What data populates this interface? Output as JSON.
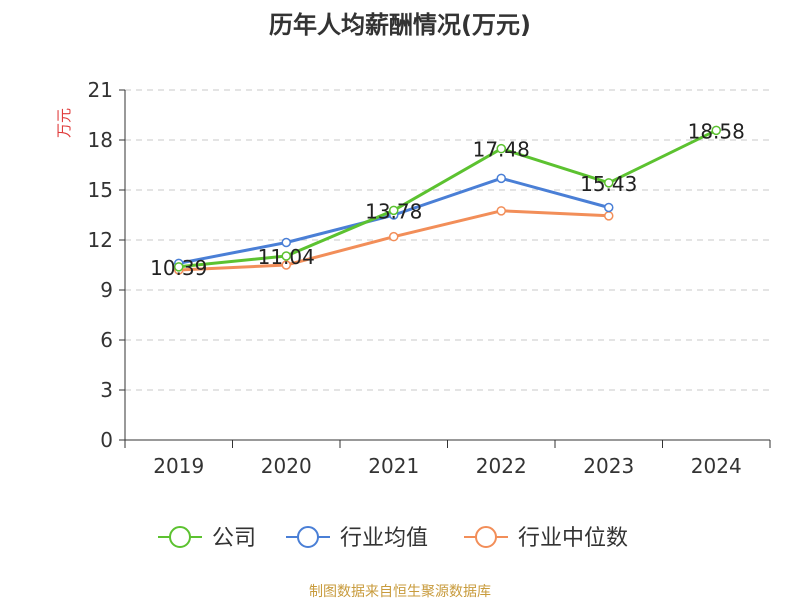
{
  "page": {
    "title": "历年人均薪酬情况(万元)",
    "source": "制图数据来自恒生聚源数据库"
  },
  "chart_data": {
    "type": "line",
    "title": "历年人均薪酬情况(万元)",
    "ylabel": "万元",
    "xlabel": "",
    "categories": [
      "2019",
      "2020",
      "2021",
      "2022",
      "2023",
      "2024"
    ],
    "ylim": [
      0,
      21
    ],
    "yticks": [
      0,
      3,
      6,
      9,
      12,
      15,
      18,
      21
    ],
    "grid": true,
    "legend_position": "bottom",
    "series": [
      {
        "name": "公司",
        "color": "#5cc230",
        "values": [
          10.39,
          11.04,
          13.78,
          17.48,
          15.43,
          18.58
        ],
        "labels": [
          "10.39",
          "11.04",
          "13.78",
          "17.48",
          "15.43",
          "18.58"
        ]
      },
      {
        "name": "行业均值",
        "color": "#4a7fd6",
        "values": [
          10.6,
          11.85,
          13.5,
          15.7,
          13.95,
          null
        ],
        "labels": []
      },
      {
        "name": "行业中位数",
        "color": "#f28e59",
        "values": [
          10.2,
          10.5,
          12.2,
          13.75,
          13.45,
          null
        ],
        "labels": []
      }
    ]
  }
}
